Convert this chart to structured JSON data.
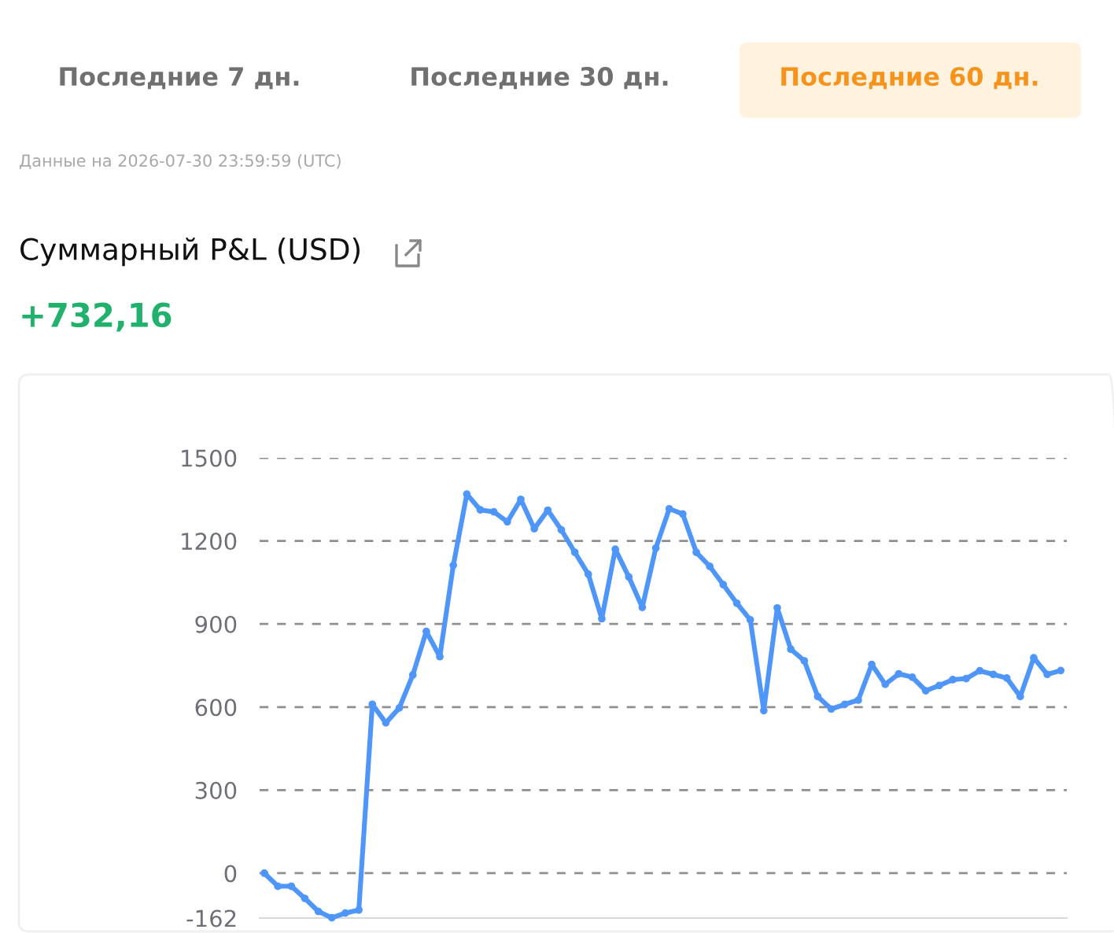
{
  "chart_data": {
    "type": "line",
    "title": "Суммарный P&L (USD)",
    "subtitle": "+732,16",
    "annotations": [
      "Последние 7 дн.",
      "Последние 30 дн.",
      "Последние 60 дн.",
      "Данные на 2026-07-30 23:59:59 (UTC)"
    ],
    "categories": [
      null,
      null,
      null,
      null,
      null,
      null,
      null,
      null,
      null,
      null,
      null,
      null,
      null,
      null,
      null,
      null,
      null,
      null,
      null,
      null,
      null,
      null,
      null,
      null,
      null,
      null,
      null,
      null,
      null,
      null,
      null,
      null,
      null,
      null,
      null,
      null,
      null,
      null,
      null,
      null,
      null,
      null,
      null,
      null,
      null,
      null,
      null,
      null,
      null,
      null,
      null,
      null,
      null,
      null,
      null,
      null,
      null,
      null,
      null,
      null
    ],
    "series": [
      {
        "color": "#4f96fb",
        "values": [
          0,
          -47,
          -47,
          -91,
          -138,
          -161,
          -144,
          -133,
          610,
          543,
          597,
          716,
          873,
          782,
          1112,
          1369,
          1312,
          1305,
          1269,
          1350,
          1244,
          1311,
          1240,
          1159,
          1080,
          919,
          1170,
          1070,
          960,
          1174,
          1316,
          1297,
          1159,
          1108,
          1042,
          975,
          915,
          587,
          958,
          809,
          767,
          638,
          593,
          610,
          625,
          754,
          682,
          720,
          708,
          659,
          678,
          699,
          703,
          731,
          718,
          705,
          638,
          778,
          718,
          732
        ]
      }
    ],
    "ylim": [
      -162,
      1500
    ],
    "yticks": [
      -162,
      0,
      300,
      600,
      900,
      1200,
      1500
    ],
    "grid": "y",
    "marker": "circle",
    "line_style": "solid"
  }
}
